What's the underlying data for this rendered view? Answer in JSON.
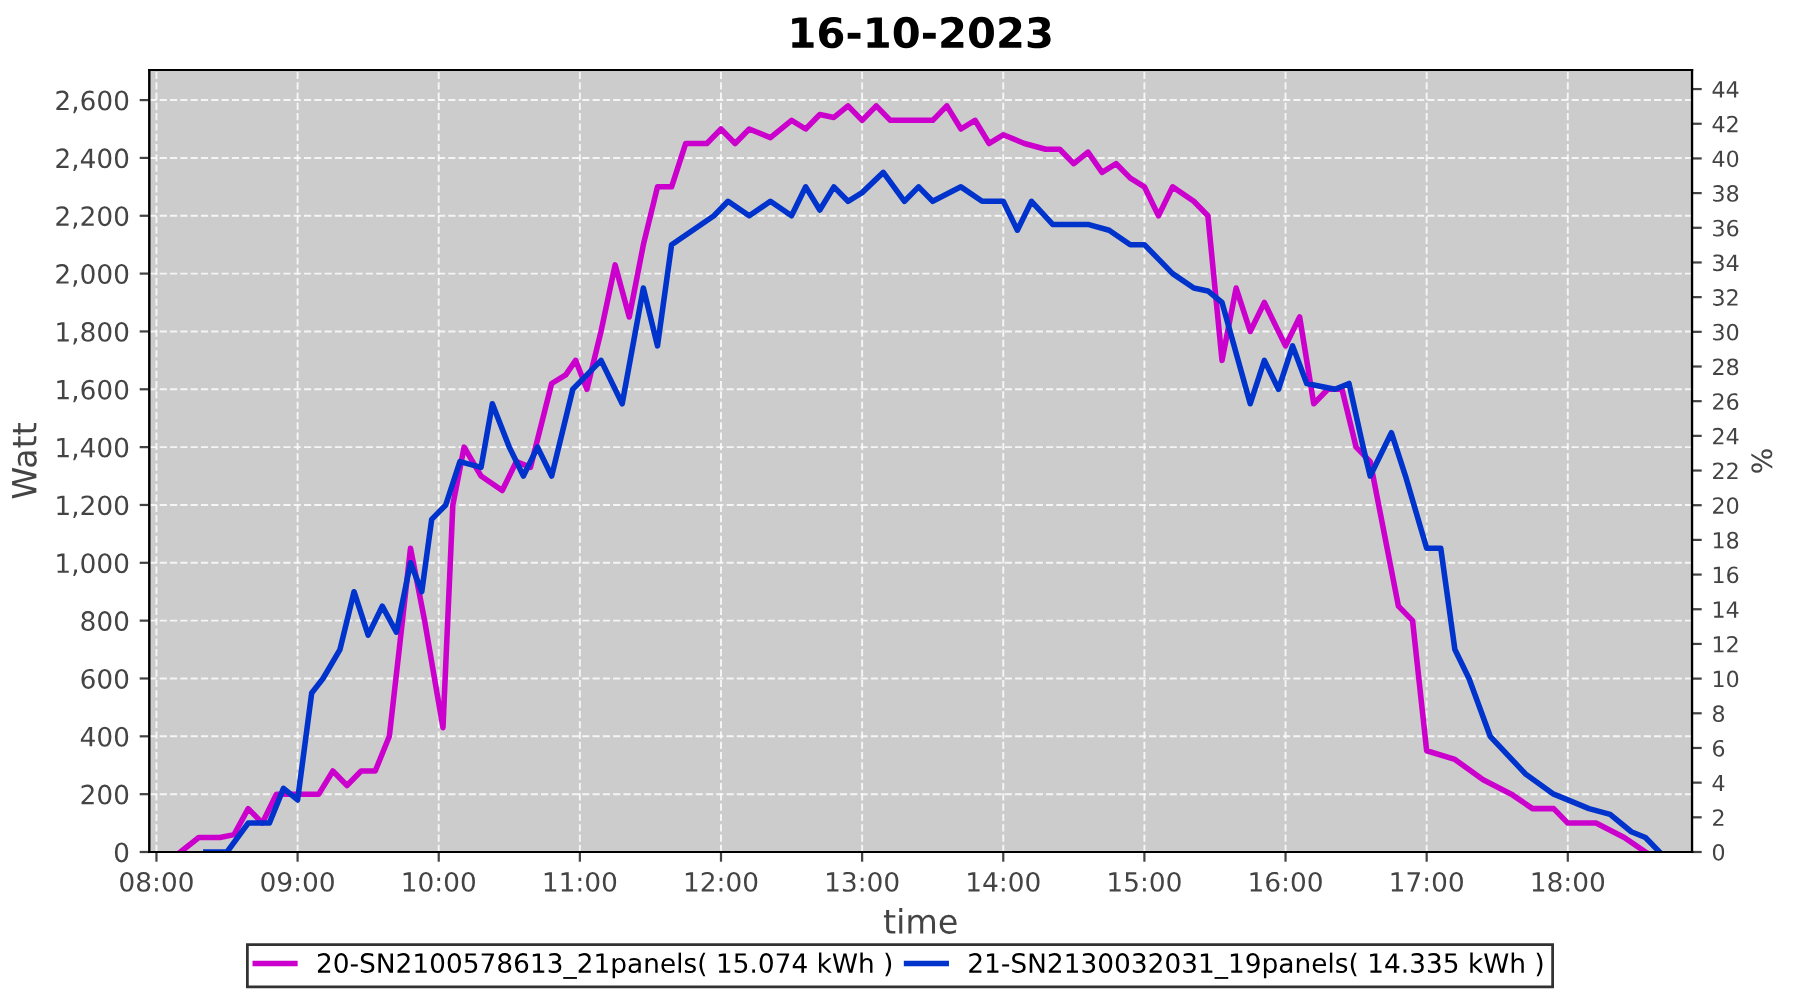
{
  "chart_data": {
    "type": "line",
    "title": "16-10-2023",
    "xlabel": "time",
    "ylabel": "Watt",
    "y2label": "%",
    "xlim": [
      7.95,
      18.88
    ],
    "xticks": [
      {
        "value": 8,
        "label": "08:00"
      },
      {
        "value": 9,
        "label": "09:00"
      },
      {
        "value": 10,
        "label": "10:00"
      },
      {
        "value": 11,
        "label": "11:00"
      },
      {
        "value": 12,
        "label": "12:00"
      },
      {
        "value": 13,
        "label": "13:00"
      },
      {
        "value": 14,
        "label": "14:00"
      },
      {
        "value": 15,
        "label": "15:00"
      },
      {
        "value": 16,
        "label": "16:00"
      },
      {
        "value": 17,
        "label": "17:00"
      },
      {
        "value": 18,
        "label": "18:00"
      }
    ],
    "ylim": [
      0,
      2704
    ],
    "yticks": [
      0,
      200,
      400,
      600,
      800,
      {
        "value": 1000,
        "label": "1,000"
      },
      {
        "value": 1200,
        "label": "1,200"
      },
      {
        "value": 1400,
        "label": "1,400"
      },
      {
        "value": 1600,
        "label": "1,600"
      },
      {
        "value": 1800,
        "label": "1,800"
      },
      {
        "value": 2000,
        "label": "2,000"
      },
      {
        "value": 2200,
        "label": "2,200"
      },
      {
        "value": 2400,
        "label": "2,400"
      },
      {
        "value": 2600,
        "label": "2,600"
      }
    ],
    "y2lim": [
      0,
      45.1
    ],
    "y2ticks": [
      0,
      2,
      4,
      6,
      8,
      10,
      12,
      14,
      16,
      18,
      20,
      22,
      24,
      26,
      28,
      30,
      32,
      34,
      36,
      38,
      40,
      42,
      44
    ],
    "grid": true,
    "legend": "bottom",
    "marker": "none",
    "line_style": "solid",
    "series": [
      {
        "name": "20-SN2100578613_21panels( 15.074 kWh )",
        "color": "#cc00cc",
        "x": [
          8.17,
          8.3,
          8.45,
          8.55,
          8.65,
          8.75,
          8.85,
          9.0,
          9.15,
          9.25,
          9.35,
          9.45,
          9.55,
          9.65,
          9.72,
          9.8,
          9.9,
          9.97,
          10.03,
          10.1,
          10.18,
          10.3,
          10.45,
          10.55,
          10.65,
          10.8,
          10.9,
          10.97,
          11.05,
          11.15,
          11.25,
          11.35,
          11.45,
          11.55,
          11.65,
          11.75,
          11.9,
          12.0,
          12.1,
          12.2,
          12.35,
          12.5,
          12.6,
          12.7,
          12.8,
          12.9,
          13.0,
          13.1,
          13.2,
          13.35,
          13.5,
          13.6,
          13.7,
          13.8,
          13.9,
          14.0,
          14.15,
          14.3,
          14.4,
          14.5,
          14.6,
          14.7,
          14.8,
          14.9,
          15.0,
          15.1,
          15.2,
          15.35,
          15.45,
          15.55,
          15.65,
          15.75,
          15.85,
          16.0,
          16.1,
          16.2,
          16.3,
          16.4,
          16.5,
          16.6,
          16.7,
          16.8,
          16.9,
          17.0,
          17.2,
          17.4,
          17.6,
          17.75,
          17.9,
          18.0,
          18.2,
          18.4,
          18.55
        ],
        "values": [
          0,
          50,
          50,
          60,
          150,
          100,
          200,
          200,
          200,
          280,
          230,
          280,
          280,
          400,
          700,
          1050,
          800,
          600,
          430,
          1200,
          1400,
          1300,
          1250,
          1350,
          1330,
          1620,
          1650,
          1700,
          1600,
          1800,
          2030,
          1850,
          2100,
          2300,
          2300,
          2450,
          2450,
          2500,
          2450,
          2500,
          2470,
          2530,
          2500,
          2550,
          2540,
          2580,
          2530,
          2580,
          2530,
          2530,
          2530,
          2580,
          2500,
          2530,
          2450,
          2480,
          2450,
          2430,
          2430,
          2380,
          2420,
          2350,
          2380,
          2330,
          2300,
          2200,
          2300,
          2250,
          2200,
          1700,
          1950,
          1800,
          1900,
          1750,
          1850,
          1550,
          1600,
          1600,
          1400,
          1350,
          1100,
          850,
          800,
          350,
          320,
          250,
          200,
          150,
          150,
          100,
          100,
          50,
          0
        ]
      },
      {
        "name": "21-SN2130032031_19panels( 14.335 kWh )",
        "color": "#0033cc",
        "x": [
          8.35,
          8.5,
          8.65,
          8.8,
          8.9,
          9.0,
          9.1,
          9.18,
          9.3,
          9.4,
          9.5,
          9.6,
          9.7,
          9.8,
          9.88,
          9.95,
          10.05,
          10.15,
          10.3,
          10.38,
          10.5,
          10.6,
          10.7,
          10.8,
          10.95,
          11.05,
          11.15,
          11.3,
          11.45,
          11.55,
          11.65,
          11.8,
          11.95,
          12.05,
          12.2,
          12.35,
          12.5,
          12.6,
          12.7,
          12.8,
          12.9,
          13.0,
          13.15,
          13.3,
          13.4,
          13.5,
          13.7,
          13.85,
          14.0,
          14.1,
          14.2,
          14.35,
          14.6,
          14.75,
          14.9,
          15.0,
          15.1,
          15.2,
          15.35,
          15.45,
          15.55,
          15.75,
          15.85,
          15.95,
          16.05,
          16.15,
          16.35,
          16.45,
          16.55,
          16.6,
          16.75,
          16.85,
          17.0,
          17.1,
          17.2,
          17.3,
          17.45,
          17.7,
          17.9,
          18.0,
          18.15,
          18.3,
          18.45,
          18.55,
          18.65
        ],
        "values": [
          0,
          0,
          100,
          100,
          220,
          180,
          550,
          600,
          700,
          900,
          750,
          850,
          760,
          1000,
          900,
          1150,
          1200,
          1350,
          1330,
          1550,
          1400,
          1300,
          1400,
          1300,
          1600,
          1650,
          1700,
          1550,
          1950,
          1750,
          2100,
          2150,
          2200,
          2250,
          2200,
          2250,
          2200,
          2300,
          2220,
          2300,
          2250,
          2280,
          2350,
          2250,
          2300,
          2250,
          2300,
          2250,
          2250,
          2150,
          2250,
          2170,
          2170,
          2150,
          2100,
          2100,
          2050,
          2000,
          1950,
          1940,
          1900,
          1550,
          1700,
          1600,
          1750,
          1620,
          1600,
          1620,
          1400,
          1300,
          1450,
          1300,
          1050,
          1050,
          700,
          600,
          400,
          270,
          200,
          180,
          150,
          130,
          70,
          50,
          0
        ]
      }
    ]
  }
}
